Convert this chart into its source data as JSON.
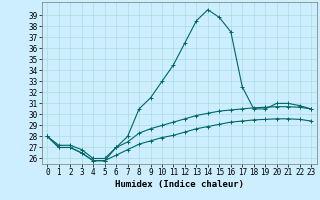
{
  "title": "",
  "xlabel": "Humidex (Indice chaleur)",
  "background_color": "#cceeff",
  "grid_color": "#aadddd",
  "line_color": "#006666",
  "xlim": [
    -0.5,
    23.5
  ],
  "ylim": [
    25.5,
    40.2
  ],
  "xticks": [
    0,
    1,
    2,
    3,
    4,
    5,
    6,
    7,
    8,
    9,
    10,
    11,
    12,
    13,
    14,
    15,
    16,
    17,
    18,
    19,
    20,
    21,
    22,
    23
  ],
  "yticks": [
    26,
    27,
    28,
    29,
    30,
    31,
    32,
    33,
    34,
    35,
    36,
    37,
    38,
    39
  ],
  "series": [
    [
      28.0,
      27.0,
      27.0,
      26.5,
      25.8,
      25.8,
      27.0,
      28.0,
      30.5,
      31.5,
      33.0,
      34.5,
      36.5,
      38.5,
      39.5,
      38.8,
      37.5,
      32.5,
      30.5,
      30.5,
      31.0,
      31.0,
      30.8,
      30.5
    ],
    [
      28.0,
      27.2,
      27.2,
      26.8,
      26.0,
      26.0,
      27.0,
      27.5,
      28.3,
      28.7,
      29.0,
      29.3,
      29.6,
      29.9,
      30.1,
      30.3,
      30.4,
      30.5,
      30.6,
      30.65,
      30.7,
      30.7,
      30.65,
      30.5
    ],
    [
      28.0,
      27.0,
      27.0,
      26.5,
      25.8,
      25.8,
      26.3,
      26.8,
      27.3,
      27.6,
      27.9,
      28.1,
      28.4,
      28.7,
      28.9,
      29.1,
      29.3,
      29.4,
      29.5,
      29.55,
      29.6,
      29.6,
      29.55,
      29.4
    ]
  ],
  "font_family": "monospace",
  "tick_fontsize": 5.5,
  "xlabel_fontsize": 6.5
}
